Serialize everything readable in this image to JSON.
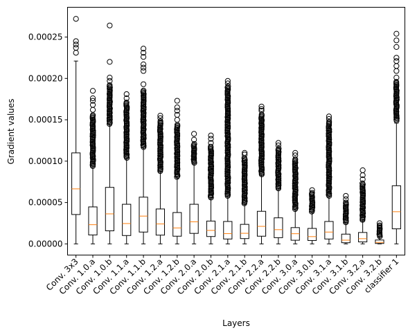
{
  "chart_data": {
    "type": "boxplot",
    "title": "",
    "xlabel": "Layers",
    "ylabel": "Gradient values",
    "ylim": [
      -1.35e-05,
      0.000286
    ],
    "yticks": [
      0.0,
      5e-05,
      0.0001,
      0.00015,
      0.0002,
      0.00025
    ],
    "ytick_labels": [
      "0.00000",
      "0.00005",
      "0.00010",
      "0.00015",
      "0.00020",
      "0.00025"
    ],
    "categories": [
      "Conv. 3x3",
      "Conv. 1.0.a",
      "Conv. 1.0.b",
      "Conv. 1.1.a",
      "Conv. 1.1.b",
      "Conv. 1.2.a",
      "Conv. 1.2.b",
      "Conv. 2.0.a",
      "Conv. 2.0.b",
      "Conv. 2.1.a",
      "Conv. 2.1.b",
      "Conv. 2.2.a",
      "Conv. 2.2.b",
      "Conv. 3.0.a",
      "Conv. 3.0.b",
      "Conv. 3.1.a",
      "Conv. 3.1.b",
      "Conv. 3.2.a",
      "Conv. 3.2.b",
      "classifier 1"
    ],
    "boxes": [
      {
        "min": 0.0,
        "q1": 3.55e-05,
        "median": 6.65e-05,
        "q3": 0.00011,
        "whisker_high": 0.000221,
        "fliers": [
          0.000231,
          0.000237,
          0.000241,
          0.000245,
          0.000272
        ]
      },
      {
        "min": 0.0,
        "q1": 1.08e-05,
        "median": 2.32e-05,
        "q3": 4.47e-05,
        "whisker_high": 9.4e-05,
        "flier_band": [
          9.4e-05,
          0.000156
        ],
        "fliers": [
          0.000162,
          0.000168,
          0.000173,
          0.000176,
          0.000185
        ]
      },
      {
        "min": 0.0,
        "q1": 1.58e-05,
        "median": 3.63e-05,
        "q3": 6.83e-05,
        "whisker_high": 0.000145,
        "flier_band": [
          0.000145,
          0.000193
        ],
        "fliers": [
          0.000197,
          0.000201,
          0.00022,
          0.000264
        ]
      },
      {
        "min": 0.0,
        "q1": 1.01e-05,
        "median": 2.46e-05,
        "q3": 4.79e-05,
        "whisker_high": 0.000104,
        "flier_band": [
          0.000104,
          0.000172
        ],
        "fliers": [
          0.000176,
          0.000181
        ]
      },
      {
        "min": 0.0,
        "q1": 1.43e-05,
        "median": 3.36e-05,
        "q3": 5.65e-05,
        "whisker_high": 0.000117,
        "flier_band": [
          0.000117,
          0.000186
        ],
        "fliers": [
          0.000193,
          0.000209,
          0.000213,
          0.000217,
          0.000226,
          0.000231,
          0.000236
        ]
      },
      {
        "min": 0.0,
        "q1": 1.06e-05,
        "median": 2.41e-05,
        "q3": 4.22e-05,
        "whisker_high": 8.8e-05,
        "flier_band": [
          8.8e-05,
          0.000149
        ],
        "fliers": [
          0.000152,
          0.000155
        ]
      },
      {
        "min": 0.0,
        "q1": 9.3e-06,
        "median": 1.93e-05,
        "q3": 3.79e-05,
        "whisker_high": 8.1e-05,
        "flier_band": [
          8.1e-05,
          0.000144
        ],
        "fliers": [
          0.00015,
          0.000156,
          0.000161,
          0.000165,
          0.000173
        ]
      },
      {
        "min": 0.0,
        "q1": 1.27e-05,
        "median": 2.67e-05,
        "q3": 4.79e-05,
        "whisker_high": 9.8e-05,
        "flier_band": [
          9.8e-05,
          0.000122
        ],
        "fliers": [
          0.000126,
          0.000133
        ]
      },
      {
        "min": 0.0,
        "q1": 8.9e-06,
        "median": 1.63e-05,
        "q3": 2.76e-05,
        "whisker_high": 5.6e-05,
        "flier_band": [
          5.6e-05,
          0.000118
        ],
        "fliers": [
          0.000122,
          0.000127,
          0.000131
        ]
      },
      {
        "min": 0.0,
        "q1": 5.9e-06,
        "median": 1.24e-05,
        "q3": 2.71e-05,
        "whisker_high": 5.8e-05,
        "flier_band": [
          5.8e-05,
          0.000191
        ],
        "fliers": [
          0.000194,
          0.000197
        ]
      },
      {
        "min": 0.0,
        "q1": 6.4e-06,
        "median": 1.28e-05,
        "q3": 2.36e-05,
        "whisker_high": 4.9e-05,
        "flier_band": [
          4.9e-05,
          0.000105
        ],
        "fliers": [
          0.000108,
          0.00011
        ]
      },
      {
        "min": 0.0,
        "q1": 9.3e-06,
        "median": 2.12e-05,
        "q3": 3.94e-05,
        "whisker_high": 8.4e-05,
        "flier_band": [
          8.4e-05,
          0.000157
        ],
        "fliers": [
          0.000161,
          0.000163,
          0.000166
        ]
      },
      {
        "min": 0.0,
        "q1": 7.5e-06,
        "median": 1.72e-05,
        "q3": 3.15e-05,
        "whisker_high": 6.7e-05,
        "flier_band": [
          6.7e-05,
          0.000116
        ],
        "fliers": [
          0.000119,
          0.000122
        ]
      },
      {
        "min": 0.0,
        "q1": 4.4e-06,
        "median": 1.23e-05,
        "q3": 1.97e-05,
        "whisker_high": 4.2e-05,
        "flier_band": [
          4.2e-05,
          0.000103
        ],
        "fliers": [
          0.000107,
          0.00011
        ]
      },
      {
        "min": 0.0,
        "q1": 4.1e-06,
        "median": 8.8e-06,
        "q3": 1.87e-05,
        "whisker_high": 3.9e-05,
        "flier_band": [
          3.9e-05,
          6.2e-05
        ],
        "fliers": [
          6.5e-05
        ]
      },
      {
        "min": 0.0,
        "q1": 5.9e-06,
        "median": 1.43e-05,
        "q3": 2.71e-05,
        "whisker_high": 5.8e-05,
        "flier_band": [
          5.8e-05,
          0.000148
        ],
        "fliers": [
          0.000151,
          0.000154
        ]
      },
      {
        "min": 0.0,
        "q1": 1.4e-06,
        "median": 4.5e-06,
        "q3": 1.18e-05,
        "whisker_high": 2.6e-05,
        "flier_band": [
          2.6e-05,
          5.1e-05
        ],
        "fliers": [
          5.4e-05,
          5.8e-05
        ]
      },
      {
        "min": 0.0,
        "q1": 2.4e-06,
        "median": 6.3e-06,
        "q3": 1.38e-05,
        "whisker_high": 2.9e-05,
        "flier_band": [
          2.9e-05,
          7.4e-05
        ],
        "fliers": [
          7.8e-05,
          8.3e-05,
          8.9e-05
        ]
      },
      {
        "min": 0.0,
        "q1": 5e-07,
        "median": 1.8e-06,
        "q3": 4.7e-06,
        "whisker_high": 9e-06,
        "flier_band": [
          9e-06,
          2.3e-05
        ],
        "fliers": [
          2.5e-05
        ]
      },
      {
        "min": 0.0,
        "q1": 1.82e-05,
        "median": 3.89e-05,
        "q3": 7.03e-05,
        "whisker_high": 0.000146,
        "flier_band": [
          0.000149,
          0.000196
        ],
        "fliers": [
          0.000201,
          0.000209,
          0.000215,
          0.000221,
          0.000225,
          0.000238,
          0.000246,
          0.000254
        ]
      }
    ],
    "colors": {
      "box": "#000000",
      "median": "#ff7f0e",
      "flier": "#000000",
      "background": "#ffffff"
    }
  }
}
